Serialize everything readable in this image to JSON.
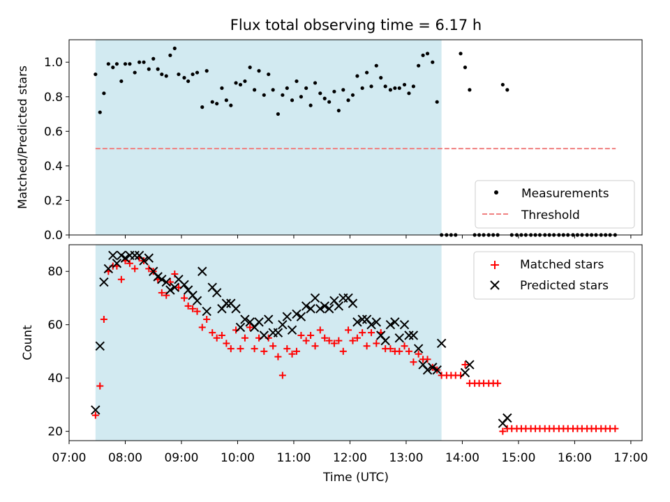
{
  "title": "Flux total observing time = 6.17 h",
  "colors": {
    "band": "#add8e6",
    "threshold": "#f08080",
    "measurement": "#000000",
    "matched": "#ff0000",
    "predicted": "#000000"
  },
  "chart_data": [
    {
      "type": "scatter",
      "title": "Flux total observing time = 6.17 h",
      "xlabel": "",
      "ylabel": "Matched/Predicted stars",
      "xlim": [
        7.0,
        17.2
      ],
      "ylim": [
        0.0,
        1.13
      ],
      "yticks": [
        0.0,
        0.2,
        0.4,
        0.6,
        0.8,
        1.0
      ],
      "ytick_labels": [
        "0.0",
        "0.2",
        "0.4",
        "0.6",
        "0.8",
        "1.0"
      ],
      "legend_position": "lower-right",
      "legend": [
        {
          "label": "Measurements",
          "marker": "dot"
        },
        {
          "label": "Threshold",
          "marker": "dashed-line"
        }
      ],
      "shaded_band": {
        "x_start": 7.47,
        "x_end": 13.63
      },
      "threshold": {
        "value": 0.5,
        "x_start": 7.47,
        "x_end": 16.73
      },
      "series": [
        {
          "name": "Measurements",
          "x": [
            7.47,
            7.55,
            7.62,
            7.7,
            7.78,
            7.85,
            7.93,
            8.0,
            8.08,
            8.17,
            8.25,
            8.33,
            8.42,
            8.5,
            8.58,
            8.65,
            8.73,
            8.8,
            8.88,
            8.95,
            9.05,
            9.12,
            9.2,
            9.28,
            9.37,
            9.45,
            9.55,
            9.63,
            9.72,
            9.8,
            9.88,
            9.97,
            10.05,
            10.13,
            10.22,
            10.3,
            10.38,
            10.47,
            10.55,
            10.63,
            10.72,
            10.8,
            10.88,
            10.97,
            11.05,
            11.13,
            11.22,
            11.3,
            11.38,
            11.47,
            11.55,
            11.63,
            11.72,
            11.8,
            11.88,
            11.97,
            12.05,
            12.13,
            12.22,
            12.3,
            12.38,
            12.47,
            12.55,
            12.63,
            12.72,
            12.8,
            12.88,
            12.97,
            13.05,
            13.13,
            13.22,
            13.3,
            13.38,
            13.47,
            13.55,
            13.63,
            13.72,
            13.8,
            13.88,
            13.97,
            14.05,
            14.13,
            14.22,
            14.3,
            14.38,
            14.47,
            14.55,
            14.63,
            14.72,
            14.8,
            14.88,
            14.97,
            15.05,
            15.13,
            15.22,
            15.3,
            15.38,
            15.47,
            15.55,
            15.63,
            15.72,
            15.8,
            15.88,
            15.97,
            16.05,
            16.13,
            16.22,
            16.3,
            16.38,
            16.47,
            16.55,
            16.63,
            16.72
          ],
          "y": [
            0.93,
            0.71,
            0.82,
            0.99,
            0.97,
            0.99,
            0.89,
            0.99,
            0.99,
            0.94,
            1.0,
            1.0,
            0.96,
            1.02,
            0.96,
            0.93,
            0.92,
            1.04,
            1.08,
            0.93,
            0.91,
            0.89,
            0.93,
            0.94,
            0.74,
            0.95,
            0.77,
            0.76,
            0.85,
            0.78,
            0.75,
            0.88,
            0.87,
            0.89,
            0.97,
            0.84,
            0.95,
            0.81,
            0.93,
            0.84,
            0.7,
            0.81,
            0.85,
            0.78,
            0.89,
            0.8,
            0.85,
            0.75,
            0.88,
            0.82,
            0.79,
            0.77,
            0.83,
            0.72,
            0.84,
            0.78,
            0.81,
            0.92,
            0.85,
            0.94,
            0.86,
            0.98,
            0.91,
            0.86,
            0.84,
            0.85,
            0.85,
            0.87,
            0.82,
            0.86,
            0.98,
            1.04,
            1.05,
            1.0,
            0.77,
            0.0,
            0.0,
            0.0,
            0.0,
            1.05,
            0.97,
            0.84,
            0.0,
            0.0,
            0.0,
            0.0,
            0.0,
            0.0,
            0.87,
            0.84,
            0.0,
            0.0,
            0.0,
            0.0,
            0.0,
            0.0,
            0.0,
            0.0,
            0.0,
            0.0,
            0.0,
            0.0,
            0.0,
            0.0,
            0.0,
            0.0,
            0.0,
            0.0,
            0.0,
            0.0,
            0.0,
            0.0,
            0.0
          ]
        }
      ]
    },
    {
      "type": "scatter",
      "title": "",
      "xlabel": "Time (UTC)",
      "ylabel": "Count",
      "xlim": [
        7.0,
        17.2
      ],
      "ylim": [
        16.5,
        90.0
      ],
      "yticks": [
        20,
        40,
        60,
        80
      ],
      "ytick_labels": [
        "20",
        "40",
        "60",
        "80"
      ],
      "xticks": [
        7,
        8,
        9,
        10,
        11,
        12,
        13,
        14,
        15,
        16,
        17
      ],
      "xtick_labels": [
        "07:00",
        "08:00",
        "09:00",
        "10:00",
        "11:00",
        "12:00",
        "13:00",
        "14:00",
        "15:00",
        "16:00",
        "17:00"
      ],
      "legend_position": "upper-right",
      "legend": [
        {
          "label": "Matched stars",
          "marker": "plus"
        },
        {
          "label": "Predicted stars",
          "marker": "x"
        }
      ],
      "shaded_band": {
        "x_start": 7.47,
        "x_end": 13.63
      },
      "series": [
        {
          "name": "Matched stars",
          "x": [
            7.47,
            7.55,
            7.62,
            7.7,
            7.78,
            7.85,
            7.93,
            8.0,
            8.08,
            8.17,
            8.25,
            8.33,
            8.42,
            8.5,
            8.58,
            8.65,
            8.73,
            8.8,
            8.88,
            8.95,
            9.05,
            9.12,
            9.2,
            9.28,
            9.37,
            9.45,
            9.55,
            9.63,
            9.72,
            9.8,
            9.88,
            9.97,
            10.05,
            10.13,
            10.22,
            10.3,
            10.38,
            10.47,
            10.55,
            10.63,
            10.72,
            10.8,
            10.88,
            10.97,
            11.05,
            11.13,
            11.22,
            11.3,
            11.38,
            11.47,
            11.55,
            11.63,
            11.72,
            11.8,
            11.88,
            11.97,
            12.05,
            12.13,
            12.22,
            12.3,
            12.38,
            12.47,
            12.55,
            12.63,
            12.72,
            12.8,
            12.88,
            12.97,
            13.05,
            13.13,
            13.22,
            13.3,
            13.38,
            13.47,
            13.55,
            13.63,
            13.72,
            13.8,
            13.88,
            13.97,
            14.05,
            14.13,
            14.22,
            14.3,
            14.38,
            14.47,
            14.55,
            14.63,
            14.72,
            14.8,
            14.88,
            14.97,
            15.05,
            15.13,
            15.22,
            15.3,
            15.38,
            15.47,
            15.55,
            15.63,
            15.72,
            15.8,
            15.88,
            15.97,
            16.05,
            16.13,
            16.22,
            16.3,
            16.38,
            16.47,
            16.55,
            16.63,
            16.72
          ],
          "y": [
            26,
            37,
            62,
            80,
            82,
            82,
            77,
            84,
            83,
            81,
            85,
            84,
            81,
            80,
            77,
            72,
            71,
            76,
            79,
            74,
            70,
            67,
            66,
            65,
            59,
            62,
            57,
            55,
            56,
            53,
            51,
            58,
            51,
            55,
            59,
            51,
            55,
            50,
            55,
            52,
            48,
            41,
            51,
            49,
            50,
            56,
            54,
            56,
            52,
            58,
            55,
            54,
            53,
            54,
            50,
            58,
            54,
            55,
            57,
            52,
            57,
            53,
            57,
            51,
            51,
            50,
            50,
            52,
            50,
            46,
            49,
            47,
            47,
            44,
            43,
            41,
            41,
            41,
            41,
            41,
            45,
            38,
            38,
            38,
            38,
            38,
            38,
            38,
            20,
            21,
            21,
            21,
            21,
            21,
            21,
            21,
            21,
            21,
            21,
            21,
            21,
            21,
            21,
            21,
            21,
            21,
            21,
            21,
            21,
            21,
            21,
            21,
            21
          ]
        },
        {
          "name": "Predicted stars",
          "x": [
            7.47,
            7.55,
            7.62,
            7.7,
            7.78,
            7.85,
            7.93,
            8.0,
            8.08,
            8.17,
            8.25,
            8.33,
            8.42,
            8.5,
            8.58,
            8.65,
            8.73,
            8.8,
            8.88,
            8.95,
            9.05,
            9.12,
            9.2,
            9.28,
            9.37,
            9.45,
            9.55,
            9.63,
            9.72,
            9.8,
            9.88,
            9.97,
            10.05,
            10.13,
            10.22,
            10.3,
            10.38,
            10.47,
            10.55,
            10.63,
            10.72,
            10.8,
            10.88,
            10.97,
            11.05,
            11.13,
            11.22,
            11.3,
            11.38,
            11.47,
            11.55,
            11.63,
            11.72,
            11.8,
            11.88,
            11.97,
            12.05,
            12.13,
            12.22,
            12.3,
            12.38,
            12.47,
            12.55,
            12.63,
            12.72,
            12.8,
            12.88,
            12.97,
            13.05,
            13.13,
            13.22,
            13.3,
            13.38,
            13.47,
            13.55,
            13.63,
            14.05,
            14.13,
            14.72,
            14.8
          ],
          "y": [
            28,
            52,
            76,
            81,
            86,
            83,
            86,
            85,
            86,
            86,
            86,
            84,
            85,
            80,
            78,
            77,
            76,
            73,
            74,
            77,
            75,
            73,
            71,
            69,
            80,
            65,
            74,
            72,
            66,
            68,
            68,
            66,
            59,
            62,
            61,
            59,
            61,
            56,
            62,
            57,
            57,
            60,
            63,
            58,
            64,
            63,
            67,
            66,
            70,
            66,
            67,
            66,
            69,
            67,
            70,
            70,
            68,
            61,
            62,
            62,
            60,
            61,
            56,
            54,
            60,
            61,
            55,
            60,
            56,
            56,
            51,
            45,
            43,
            44,
            43,
            53,
            42,
            45,
            23,
            25
          ]
        }
      ]
    }
  ]
}
